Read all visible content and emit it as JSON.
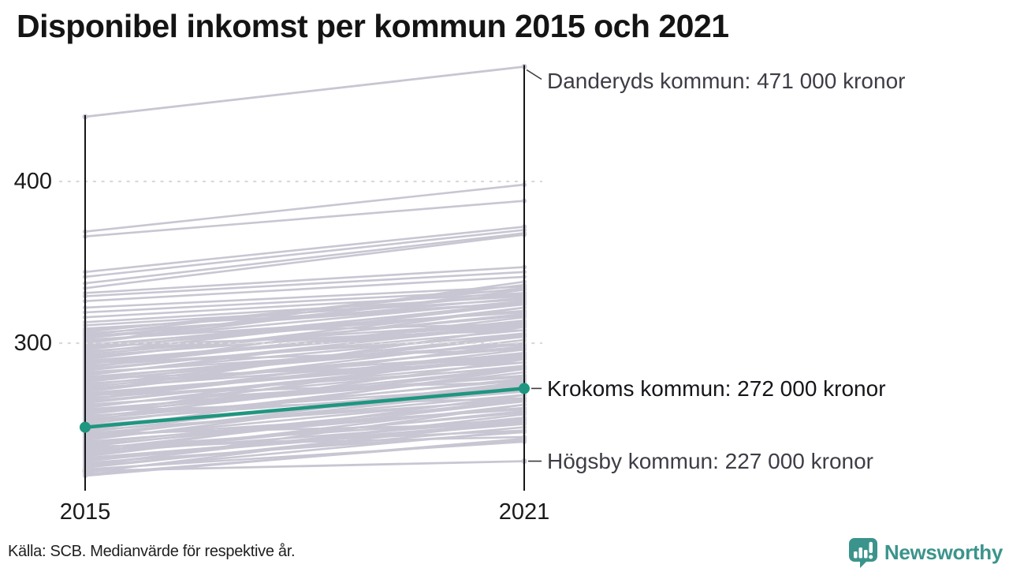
{
  "title": "Disponibel inkomst per kommun 2015 och 2021",
  "source": "Källa: SCB. Medianvärde för respektive år.",
  "logo": {
    "text": "Newsworthy"
  },
  "colors": {
    "line_gray": "#c8c6d2",
    "highlight": "#1e9680",
    "grid": "#d9d9d9",
    "axis": "#161616",
    "title": "#141414",
    "tick_label": "#1a1a1a",
    "label_dark": "#3d3d46",
    "label_emphasis": "#15151a",
    "logo": "#3b948c"
  },
  "chart_data": {
    "type": "line",
    "subtype": "slope",
    "x_labels": [
      "2015",
      "2021"
    ],
    "y_ticks": [
      400,
      300
    ],
    "y_axis_range": [
      210,
      480
    ],
    "grid": true,
    "legend": "none",
    "unit_note": "values in thousands of kronor (labels show full amounts)",
    "series": [
      {
        "name": "Danderyds kommun",
        "label": "Danderyds kommun: 471 000 kronor",
        "values": [
          440,
          471
        ],
        "role": "labeled",
        "emphasis": false
      },
      {
        "name": "Krokoms kommun",
        "label": "Krokoms kommun: 272 000 kronor",
        "values": [
          248,
          272
        ],
        "role": "highlight",
        "emphasis": true
      },
      {
        "name": "Högsby kommun",
        "label": "Högsby kommun: 227 000 kronor",
        "values": [
          221,
          227
        ],
        "role": "labeled",
        "emphasis": false
      }
    ],
    "background_series": [
      [
        369,
        398
      ],
      [
        366,
        388
      ],
      [
        344,
        372
      ],
      [
        341,
        370
      ],
      [
        337,
        368
      ],
      [
        334,
        367
      ],
      [
        331,
        347
      ],
      [
        329,
        344
      ],
      [
        326,
        341
      ],
      [
        322,
        335
      ],
      [
        319,
        333
      ],
      [
        316,
        331
      ],
      [
        313,
        329
      ],
      [
        311,
        327
      ],
      [
        309,
        325
      ],
      [
        308,
        330
      ],
      [
        307,
        334
      ],
      [
        306,
        325
      ],
      [
        305,
        336
      ],
      [
        304,
        328
      ],
      [
        303,
        331
      ],
      [
        302,
        319
      ],
      [
        301,
        326
      ],
      [
        300,
        333
      ],
      [
        299,
        320
      ],
      [
        298,
        324
      ],
      [
        297,
        320
      ],
      [
        296,
        325
      ],
      [
        295,
        313
      ],
      [
        294,
        324
      ],
      [
        293,
        317
      ],
      [
        292,
        312
      ],
      [
        291,
        318
      ],
      [
        290,
        322
      ],
      [
        289,
        311
      ],
      [
        288,
        310
      ],
      [
        287,
        314
      ],
      [
        286,
        305
      ],
      [
        285,
        316
      ],
      [
        284,
        308
      ],
      [
        283,
        311
      ],
      [
        282,
        299
      ],
      [
        281,
        306
      ],
      [
        280,
        313
      ],
      [
        279,
        300
      ],
      [
        278,
        304
      ],
      [
        277,
        300
      ],
      [
        276,
        305
      ],
      [
        275,
        293
      ],
      [
        274,
        304
      ],
      [
        273,
        297
      ],
      [
        272,
        292
      ],
      [
        271,
        298
      ],
      [
        270,
        302
      ],
      [
        269,
        291
      ],
      [
        268,
        290
      ],
      [
        267,
        294
      ],
      [
        266,
        285
      ],
      [
        265,
        296
      ],
      [
        264,
        288
      ],
      [
        263,
        291
      ],
      [
        262,
        279
      ],
      [
        261,
        286
      ],
      [
        260,
        293
      ],
      [
        259,
        280
      ],
      [
        258,
        284
      ],
      [
        257,
        280
      ],
      [
        256,
        285
      ],
      [
        255,
        273
      ],
      [
        254,
        284
      ],
      [
        253,
        277
      ],
      [
        252,
        272
      ],
      [
        251,
        278
      ],
      [
        250,
        282
      ],
      [
        249,
        271
      ],
      [
        248,
        270
      ],
      [
        247,
        274
      ],
      [
        246,
        265
      ],
      [
        245,
        276
      ],
      [
        244,
        268
      ],
      [
        243,
        271
      ],
      [
        242,
        259
      ],
      [
        241,
        266
      ],
      [
        240,
        273
      ],
      [
        239,
        260
      ],
      [
        238,
        264
      ],
      [
        237,
        260
      ],
      [
        236,
        265
      ],
      [
        235,
        253
      ],
      [
        234,
        264
      ],
      [
        233,
        257
      ],
      [
        232,
        252
      ],
      [
        231,
        258
      ],
      [
        230,
        262
      ],
      [
        229,
        251
      ],
      [
        228,
        250
      ],
      [
        227,
        254
      ],
      [
        226,
        245
      ],
      [
        225,
        256
      ],
      [
        224,
        248
      ],
      [
        223,
        251
      ],
      [
        222,
        239
      ],
      [
        221,
        246
      ],
      [
        220,
        253
      ],
      [
        219,
        240
      ],
      [
        305,
        312
      ],
      [
        298,
        308
      ],
      [
        288,
        296
      ],
      [
        278,
        288
      ],
      [
        268,
        276
      ],
      [
        258,
        266
      ],
      [
        300,
        338
      ],
      [
        285,
        322
      ],
      [
        265,
        300
      ],
      [
        242,
        275
      ],
      [
        232,
        268
      ],
      [
        252,
        290
      ],
      [
        224,
        262
      ],
      [
        244,
        250
      ],
      [
        236,
        242
      ],
      [
        218,
        241
      ],
      [
        246,
        284
      ],
      [
        256,
        294
      ],
      [
        270,
        310
      ],
      [
        234,
        246
      ]
    ]
  }
}
